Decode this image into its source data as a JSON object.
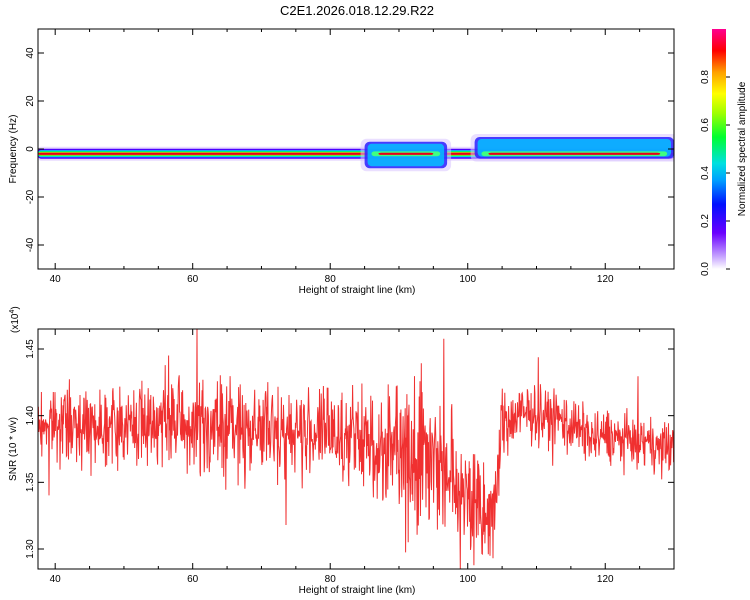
{
  "title": "C2E1.2026.018.12.29.R22",
  "colors": {
    "trace": "#f03030",
    "band_core": "#e8001a"
  },
  "chart_data": [
    {
      "type": "heatmap",
      "xlabel": "Height of straight line (km)",
      "ylabel": "Frequency (Hz)",
      "xlim": [
        37.5,
        130
      ],
      "ylim": [
        -50,
        50
      ],
      "x_ticks": [
        "40",
        "60",
        "80",
        "100",
        "120"
      ],
      "x_tick_values": [
        40,
        60,
        80,
        100,
        120
      ],
      "y_ticks": [
        "40",
        "20",
        "0",
        "-20",
        "-40"
      ],
      "y_tick_values": [
        40,
        20,
        0,
        -20,
        -40
      ],
      "colorbar": {
        "label": "Normalized spectral amplitude",
        "range": [
          0,
          1
        ],
        "ticks": [
          "0.0",
          "0.2",
          "0.4",
          "0.6",
          "0.8"
        ],
        "tick_values": [
          0.0,
          0.2,
          0.4,
          0.6,
          0.8
        ]
      },
      "band_center_hz": -2,
      "spread_regions": [
        {
          "x_start": 85,
          "x_end": 97,
          "low_hz": -8,
          "high_hz": 3
        },
        {
          "x_start": 101,
          "x_end": 130,
          "low_hz": -4,
          "high_hz": 5
        }
      ]
    },
    {
      "type": "line",
      "xlabel": "Height of straight line (km)",
      "ylabel": "SNR (10 * v/v)",
      "y_multiplier": "(x10",
      "y_multiplier_exp": "4",
      "y_multiplier_close": ")",
      "xlim": [
        37.5,
        130
      ],
      "ylim": [
        1.285,
        1.465
      ],
      "x_ticks": [
        "40",
        "60",
        "80",
        "100",
        "120"
      ],
      "x_tick_values": [
        40,
        60,
        80,
        100,
        120
      ],
      "y_ticks": [
        "1.45",
        "1.40",
        "1.35",
        "1.30"
      ],
      "y_tick_values": [
        1.45,
        1.4,
        1.35,
        1.3
      ],
      "series": [
        {
          "color": "#f03030",
          "x_start": 37.5,
          "x_end": 130,
          "profile_x": [
            37.5,
            45,
            50,
            55,
            60,
            65,
            70,
            75,
            80,
            85,
            88,
            92,
            95,
            98,
            100,
            102,
            104,
            105,
            108,
            110,
            115,
            118,
            120,
            125,
            130
          ],
          "profile_mean": [
            1.393,
            1.394,
            1.393,
            1.396,
            1.392,
            1.39,
            1.39,
            1.388,
            1.387,
            1.38,
            1.375,
            1.378,
            1.372,
            1.35,
            1.342,
            1.32,
            1.33,
            1.395,
            1.4,
            1.402,
            1.395,
            1.383,
            1.385,
            1.38,
            1.375
          ],
          "profile_amplitude": [
            0.012,
            0.014,
            0.014,
            0.016,
            0.018,
            0.018,
            0.016,
            0.016,
            0.016,
            0.018,
            0.022,
            0.026,
            0.03,
            0.026,
            0.024,
            0.024,
            0.016,
            0.012,
            0.012,
            0.01,
            0.01,
            0.01,
            0.01,
            0.009,
            0.009
          ]
        }
      ]
    }
  ]
}
